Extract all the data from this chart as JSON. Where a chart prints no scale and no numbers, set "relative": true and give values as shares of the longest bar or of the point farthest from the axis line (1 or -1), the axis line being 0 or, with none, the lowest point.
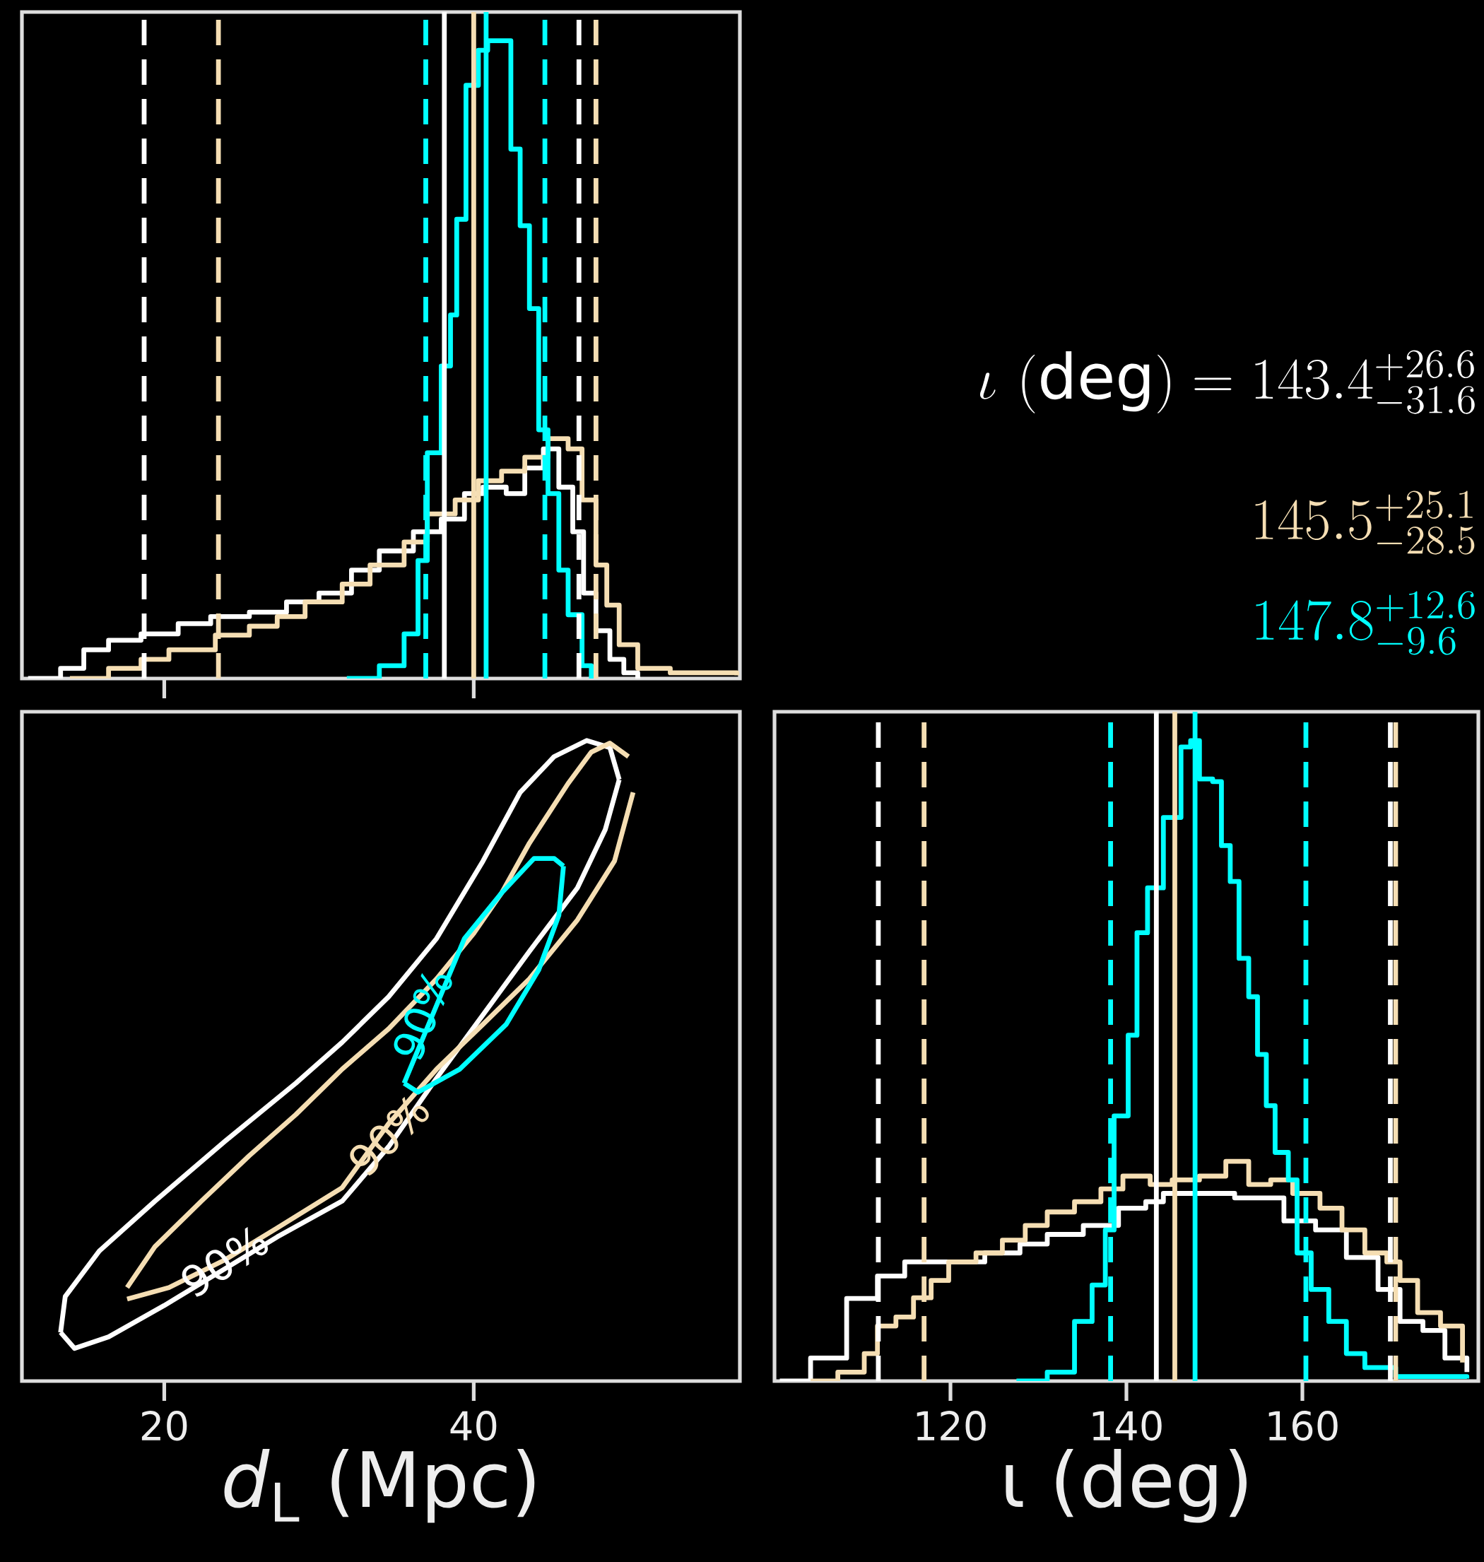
{
  "chart_data": [
    {
      "type": "step",
      "relative": true,
      "xlim": [
        10.8,
        57.2
      ],
      "xticks": [
        {
          "value": 20,
          "label": null
        },
        {
          "value": 40,
          "label": null
        }
      ],
      "tick_labels": false,
      "series": [
        {
          "color": "#ffffff",
          "x": [
            11.2,
            13.3,
            14.8,
            16.4,
            18.5,
            20.9,
            23.0,
            25.5,
            27.9,
            30.0,
            32.1,
            33.9,
            36.1,
            37.9,
            39.4,
            40.6,
            42.1,
            43.3,
            44.5,
            45.5,
            46.4,
            47.1,
            47.9,
            48.8,
            49.7,
            50.6
          ],
          "values": [
            0,
            0.016,
            0.045,
            0.06,
            0.07,
            0.086,
            0.097,
            0.104,
            0.12,
            0.134,
            0.17,
            0.2,
            0.23,
            0.25,
            0.29,
            0.3,
            0.29,
            0.33,
            0.36,
            0.3,
            0.23,
            0.134,
            0.075,
            0.03,
            0.009,
            0
          ]
        },
        {
          "color": "#f5deb3",
          "x": [
            13.9,
            16.4,
            18.5,
            20.3,
            23.3,
            25.5,
            27.3,
            29.1,
            31.5,
            33.3,
            35.5,
            37.0,
            38.8,
            40.3,
            41.8,
            43.3,
            44.8,
            46.1,
            47.0,
            47.9,
            48.6,
            49.4,
            50.6,
            52.7,
            57.0
          ],
          "values": [
            0,
            0.016,
            0.03,
            0.045,
            0.068,
            0.082,
            0.097,
            0.12,
            0.148,
            0.178,
            0.214,
            0.258,
            0.28,
            0.31,
            0.325,
            0.347,
            0.376,
            0.36,
            0.28,
            0.178,
            0.115,
            0.053,
            0.016,
            0.009,
            0.005
          ]
        },
        {
          "color": "#00ffff",
          "x": [
            31.8,
            33.9,
            35.5,
            36.4,
            37.0,
            37.9,
            38.5,
            38.9,
            39.5,
            40.3,
            40.9,
            42.0,
            42.4,
            43.0,
            43.6,
            44.2,
            44.8,
            45.5,
            46.1,
            47.0,
            47.6
          ],
          "values": [
            0,
            0.02,
            0.07,
            0.185,
            0.354,
            0.49,
            0.57,
            0.72,
            0.93,
            0.985,
            1,
            1,
            0.83,
            0.71,
            0.58,
            0.39,
            0.29,
            0.17,
            0.1,
            0.02,
            0
          ]
        }
      ],
      "ref_lines": [
        {
          "axis": "x",
          "value": 18.7,
          "color": "#ffffff",
          "line_style": "dashed"
        },
        {
          "axis": "x",
          "value": 38.1,
          "color": "#ffffff",
          "line_style": "solid"
        },
        {
          "axis": "x",
          "value": 46.8,
          "color": "#ffffff",
          "line_style": "dashed"
        },
        {
          "axis": "x",
          "value": 23.5,
          "color": "#f5deb3",
          "line_style": "dashed"
        },
        {
          "axis": "x",
          "value": 40.0,
          "color": "#f5deb3",
          "line_style": "solid"
        },
        {
          "axis": "x",
          "value": 47.9,
          "color": "#f5deb3",
          "line_style": "dashed"
        },
        {
          "axis": "x",
          "value": 36.9,
          "color": "#00ffff",
          "line_style": "dashed"
        },
        {
          "axis": "x",
          "value": 40.8,
          "color": "#00ffff",
          "line_style": "solid"
        },
        {
          "axis": "x",
          "value": 44.6,
          "color": "#00ffff",
          "line_style": "dashed"
        }
      ]
    },
    {
      "type": "line",
      "relative": true,
      "xlabel": "*d*$_{L}$ (Mpc)",
      "xlim": [
        10.8,
        57.2
      ],
      "xticks": [
        20,
        40
      ],
      "tick_labels": "x",
      "series": [
        {
          "color": "#ffffff",
          "x": [
            13.3,
            14.2,
            16.4,
            20.0,
            23.9,
            27.3,
            31.5,
            34.5,
            37.6,
            40.6,
            43.6,
            46.7,
            48.5,
            49.4
          ],
          "values": [
            0.076,
            0.051,
            0.069,
            0.118,
            0.175,
            0.225,
            0.281,
            0.366,
            0.473,
            0.572,
            0.671,
            0.77,
            0.861,
            0.939
          ]
        },
        {
          "color": "#f5deb3",
          "x": [
            17.6,
            20.3,
            23.9,
            27.3,
            31.5,
            34.5,
            37.6,
            40.6,
            43.6,
            46.7,
            49.1,
            50.3
          ],
          "values": [
            0.128,
            0.146,
            0.189,
            0.239,
            0.302,
            0.402,
            0.487,
            0.557,
            0.628,
            0.72,
            0.812,
            0.919
          ]
        },
        {
          "color": "#00ffff",
          "x": [
            35.5,
            36.4,
            39.1,
            42.1,
            44.2,
            45.5,
            45.8
          ],
          "values": [
            0.465,
            0.451,
            0.487,
            0.557,
            0.642,
            0.727,
            0.804
          ]
        },
        {
          "color": "#ffffff",
          "x": [
            13.3,
            13.6,
            15.8,
            19.4,
            23.9,
            28.5,
            31.5,
            34.5,
            37.6,
            40.6,
            43.0,
            45.2,
            47.3,
            48.8,
            49.4
          ],
          "values": [
            0.076,
            0.132,
            0.203,
            0.281,
            0.374,
            0.465,
            0.529,
            0.6,
            0.691,
            0.812,
            0.919,
            0.975,
            1,
            0.989,
            0.939
          ]
        },
        {
          "color": "#f5deb3",
          "x": [
            17.6,
            19.4,
            22.4,
            25.5,
            28.5,
            31.5,
            34.5,
            37.6,
            40.0,
            41.8,
            43.6,
            46.1,
            47.6,
            48.8,
            50.0
          ],
          "values": [
            0.146,
            0.21,
            0.281,
            0.352,
            0.416,
            0.487,
            0.55,
            0.628,
            0.699,
            0.762,
            0.84,
            0.933,
            0.982,
            0.996,
            0.975
          ]
        },
        {
          "color": "#00ffff",
          "x": [
            35.5,
            39.4,
            41.8,
            43.9,
            45.2,
            45.8
          ],
          "values": [
            0.465,
            0.691,
            0.762,
            0.816,
            0.816,
            0.804
          ]
        }
      ],
      "annotations": [
        "90%",
        "90%",
        "90%"
      ]
    },
    {
      "type": "step",
      "relative": true,
      "xlabel": "ι (deg)",
      "xlim": [
        100,
        180
      ],
      "xticks": [
        120,
        140,
        160
      ],
      "tick_labels": "x",
      "series": [
        {
          "color": "#ffffff",
          "x": [
            100.6,
            104.1,
            108.2,
            111.7,
            114.8,
            119.8,
            123.9,
            127.9,
            131.0,
            135.1,
            139.1,
            142.2,
            144.2,
            148.3,
            152.3,
            155.4,
            157.9,
            161.5,
            165.0,
            168.6,
            171.1,
            173.7,
            176.2,
            178.7
          ],
          "values": [
            0,
            0.036,
            0.129,
            0.164,
            0.186,
            0.186,
            0.2,
            0.214,
            0.229,
            0.243,
            0.27,
            0.28,
            0.293,
            0.293,
            0.286,
            0.286,
            0.25,
            0.236,
            0.193,
            0.143,
            0.093,
            0.079,
            0.036,
            0.014
          ]
        },
        {
          "color": "#f5deb3",
          "x": [
            104.1,
            107.2,
            110.2,
            111.7,
            113.8,
            115.8,
            117.8,
            119.8,
            122.9,
            125.9,
            128.5,
            131.0,
            134.1,
            137.1,
            139.6,
            142.7,
            145.2,
            148.3,
            151.3,
            153.9,
            156.4,
            158.9,
            162.0,
            164.5,
            167.1,
            169.6,
            171.1,
            173.1,
            175.7,
            178.2
          ],
          "values": [
            0,
            0.014,
            0.043,
            0.086,
            0.1,
            0.13,
            0.157,
            0.186,
            0.2,
            0.22,
            0.243,
            0.264,
            0.28,
            0.3,
            0.32,
            0.307,
            0.314,
            0.32,
            0.343,
            0.307,
            0.314,
            0.293,
            0.27,
            0.236,
            0.2,
            0.186,
            0.157,
            0.107,
            0.086,
            0.029
          ]
        },
        {
          "color": "#00ffff",
          "x": [
            127.5,
            131.0,
            134.1,
            136.1,
            137.6,
            138.6,
            140.2,
            141.2,
            142.4,
            144.2,
            146.2,
            147.3,
            148.3,
            149.8,
            150.8,
            151.8,
            152.8,
            153.9,
            154.9,
            155.9,
            156.9,
            158.4,
            159.4,
            161.0,
            163.0,
            165.0,
            167.1,
            170.6,
            178.7
          ],
          "values": [
            0,
            0.014,
            0.093,
            0.15,
            0.236,
            0.414,
            0.54,
            0.7,
            0.77,
            0.88,
            0.99,
            1,
            0.94,
            0.936,
            0.836,
            0.78,
            0.66,
            0.6,
            0.51,
            0.43,
            0.357,
            0.314,
            0.2,
            0.143,
            0.093,
            0.043,
            0.021,
            0.007,
            0.004
          ]
        }
      ],
      "ref_lines": [
        {
          "axis": "x",
          "value": 111.8,
          "color": "#ffffff",
          "line_style": "dashed"
        },
        {
          "axis": "x",
          "value": 143.4,
          "color": "#ffffff",
          "line_style": "solid"
        },
        {
          "axis": "x",
          "value": 170.0,
          "color": "#ffffff",
          "line_style": "dashed"
        },
        {
          "axis": "x",
          "value": 117.0,
          "color": "#f5deb3",
          "line_style": "dashed"
        },
        {
          "axis": "x",
          "value": 145.5,
          "color": "#f5deb3",
          "line_style": "solid"
        },
        {
          "axis": "x",
          "value": 170.6,
          "color": "#f5deb3",
          "line_style": "dashed"
        },
        {
          "axis": "x",
          "value": 138.2,
          "color": "#00ffff",
          "line_style": "dashed"
        },
        {
          "axis": "x",
          "value": 147.8,
          "color": "#00ffff",
          "line_style": "solid"
        },
        {
          "axis": "x",
          "value": 160.4,
          "color": "#00ffff",
          "line_style": "dashed"
        }
      ],
      "annotations": [
        "\\iota\\ (\\mathrm{deg}) = 143.4^{+26.6}_{-31.6}",
        "145.5^{+25.1}_{-28.5}",
        "147.8^{+12.6}_{-9.6}"
      ]
    }
  ]
}
